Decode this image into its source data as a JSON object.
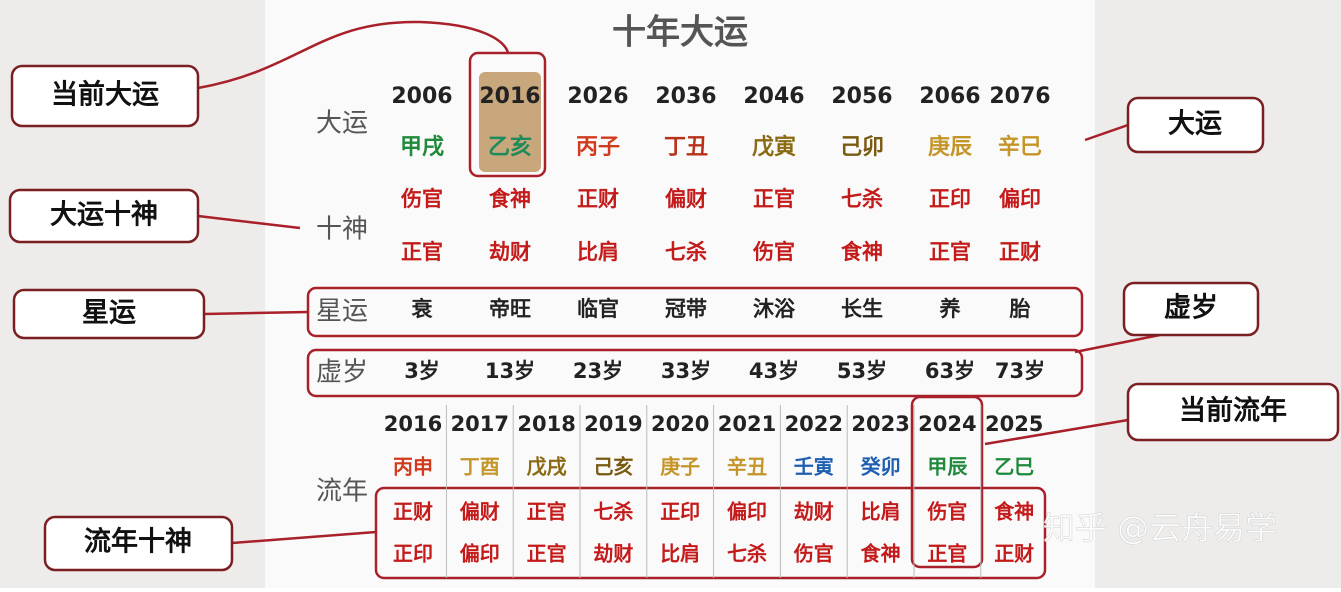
{
  "title": "十年大运",
  "callouts": {
    "current_dayun": "当前大运",
    "dayun": "大运",
    "dayun_shishen": "大运十神",
    "xingyun": "星运",
    "xusui": "虚岁",
    "current_liunian": "当前流年",
    "liunian_shishen": "流年十神"
  },
  "dayun": {
    "label": "大运",
    "years": [
      2006,
      2016,
      2026,
      2036,
      2046,
      2056,
      2066,
      2076
    ],
    "ganzhi": [
      "甲戌",
      "乙亥",
      "丙子",
      "丁丑",
      "戊寅",
      "己卯",
      "庚辰",
      "辛巳"
    ],
    "ganzhi_colors": [
      "#1f8a3c",
      "#1f8a5a",
      "#d23a1e",
      "#b8321a",
      "#8a6a12",
      "#7a5a10",
      "#c4962a",
      "#c4962a"
    ]
  },
  "shishen": {
    "label": "十神",
    "row1": [
      "伤官",
      "食神",
      "正财",
      "偏财",
      "正官",
      "七杀",
      "正印",
      "偏印"
    ],
    "row2": [
      "正官",
      "劫财",
      "比肩",
      "七杀",
      "伤官",
      "食神",
      "正官",
      "正财"
    ]
  },
  "xingyun": {
    "label": "星运",
    "values": [
      "衰",
      "帝旺",
      "临官",
      "冠带",
      "沐浴",
      "长生",
      "养",
      "胎"
    ]
  },
  "xusui": {
    "label": "虚岁",
    "values": [
      "3岁",
      "13岁",
      "23岁",
      "33岁",
      "43岁",
      "53岁",
      "63岁",
      "73岁"
    ]
  },
  "liunian": {
    "label": "流年",
    "years": [
      2016,
      2017,
      2018,
      2019,
      2020,
      2021,
      2022,
      2023,
      2024,
      2025
    ],
    "ganzhi": [
      "丙申",
      "丁酉",
      "戊戌",
      "己亥",
      "庚子",
      "辛丑",
      "壬寅",
      "癸卯",
      "甲辰",
      "乙巳"
    ],
    "ganzhi_colors": [
      "#d23a1e",
      "#c4962a",
      "#8a6a12",
      "#7a5a10",
      "#c4962a",
      "#c4962a",
      "#1f5fb0",
      "#1f5fb0",
      "#1f8a3c",
      "#1f8a3c"
    ],
    "row1": [
      "正财",
      "偏财",
      "正官",
      "七杀",
      "正印",
      "偏印",
      "劫财",
      "比肩",
      "伤官",
      "食神"
    ],
    "row2": [
      "正印",
      "偏印",
      "正官",
      "劫财",
      "比肩",
      "七杀",
      "伤官",
      "食神",
      "正官",
      "正财"
    ]
  },
  "watermark": "知乎 @云舟易学"
}
